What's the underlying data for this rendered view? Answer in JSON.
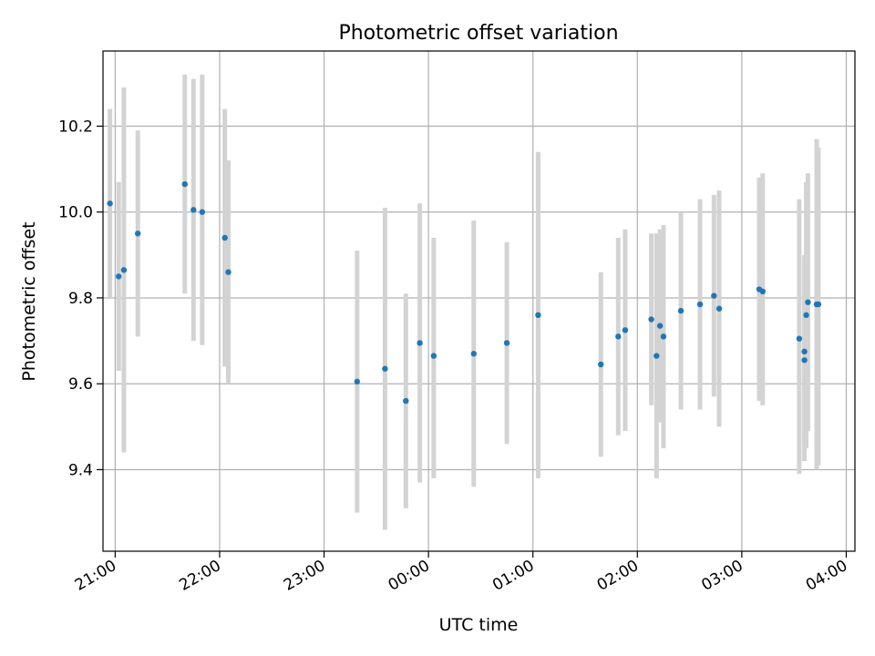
{
  "chart_data": {
    "type": "scatter",
    "title": "Photometric offset variation",
    "xlabel": "UTC time",
    "ylabel": "Photometric offset",
    "xaxis_format": "HH:MM (UTC, night spanning midnight)",
    "xlim": [
      "20:53",
      "04:05"
    ],
    "ylim": [
      9.21,
      10.375
    ],
    "x_ticks": [
      "21:00",
      "22:00",
      "23:00",
      "00:00",
      "01:00",
      "02:00",
      "03:00",
      "04:00"
    ],
    "y_ticks": [
      "9.4",
      "9.6",
      "9.8",
      "10.0",
      "10.2"
    ],
    "y_tick_values": [
      9.4,
      9.6,
      9.8,
      10.0,
      10.2
    ],
    "grid": true,
    "colors": {
      "points": "#1f77b4",
      "errorbars": "#d3d3d3",
      "grid": "#b0b0b0",
      "axes": "#000000"
    },
    "series": [
      {
        "points": [
          {
            "t": "20:57",
            "y": 10.02,
            "err_low": 9.8,
            "err_high": 10.24
          },
          {
            "t": "21:02",
            "y": 9.85,
            "err_low": 9.63,
            "err_high": 10.07
          },
          {
            "t": "21:05",
            "y": 9.865,
            "err_low": 9.44,
            "err_high": 10.29
          },
          {
            "t": "21:13",
            "y": 9.95,
            "err_low": 9.71,
            "err_high": 10.19
          },
          {
            "t": "21:40",
            "y": 10.065,
            "err_low": 9.81,
            "err_high": 10.32
          },
          {
            "t": "21:45",
            "y": 10.005,
            "err_low": 9.7,
            "err_high": 10.31
          },
          {
            "t": "21:50",
            "y": 10.0,
            "err_low": 9.69,
            "err_high": 10.32
          },
          {
            "t": "22:03",
            "y": 9.94,
            "err_low": 9.64,
            "err_high": 10.24
          },
          {
            "t": "22:05",
            "y": 9.86,
            "err_low": 9.6,
            "err_high": 10.12
          },
          {
            "t": "23:19",
            "y": 9.605,
            "err_low": 9.3,
            "err_high": 9.91
          },
          {
            "t": "23:35",
            "y": 9.635,
            "err_low": 9.26,
            "err_high": 10.01
          },
          {
            "t": "23:47",
            "y": 9.56,
            "err_low": 9.31,
            "err_high": 9.81
          },
          {
            "t": "23:55",
            "y": 9.695,
            "err_low": 9.37,
            "err_high": 10.02
          },
          {
            "t": "00:03",
            "y": 9.665,
            "err_low": 9.38,
            "err_high": 9.94
          },
          {
            "t": "00:26",
            "y": 9.67,
            "err_low": 9.36,
            "err_high": 9.98
          },
          {
            "t": "00:45",
            "y": 9.695,
            "err_low": 9.46,
            "err_high": 9.93
          },
          {
            "t": "01:03",
            "y": 9.76,
            "err_low": 9.38,
            "err_high": 10.14
          },
          {
            "t": "01:39",
            "y": 9.645,
            "err_low": 9.43,
            "err_high": 9.86
          },
          {
            "t": "01:49",
            "y": 9.71,
            "err_low": 9.48,
            "err_high": 9.94
          },
          {
            "t": "01:53",
            "y": 9.725,
            "err_low": 9.49,
            "err_high": 9.96
          },
          {
            "t": "02:08",
            "y": 9.75,
            "err_low": 9.55,
            "err_high": 9.95
          },
          {
            "t": "02:11",
            "y": 9.665,
            "err_low": 9.38,
            "err_high": 9.95
          },
          {
            "t": "02:13",
            "y": 9.735,
            "err_low": 9.51,
            "err_high": 9.96
          },
          {
            "t": "02:15",
            "y": 9.71,
            "err_low": 9.45,
            "err_high": 9.97
          },
          {
            "t": "02:25",
            "y": 9.77,
            "err_low": 9.54,
            "err_high": 10.0
          },
          {
            "t": "02:36",
            "y": 9.785,
            "err_low": 9.54,
            "err_high": 10.03
          },
          {
            "t": "02:44",
            "y": 9.805,
            "err_low": 9.57,
            "err_high": 10.04
          },
          {
            "t": "02:47",
            "y": 9.775,
            "err_low": 9.5,
            "err_high": 10.05
          },
          {
            "t": "03:10",
            "y": 9.82,
            "err_low": 9.56,
            "err_high": 10.08
          },
          {
            "t": "03:12",
            "y": 9.815,
            "err_low": 9.55,
            "err_high": 10.09
          },
          {
            "t": "03:33",
            "y": 9.705,
            "err_low": 9.39,
            "err_high": 10.03
          },
          {
            "t": "03:36",
            "y": 9.675,
            "err_low": 9.46,
            "err_high": 9.88
          },
          {
            "t": "03:36",
            "y": 9.655,
            "err_low": 9.42,
            "err_high": 9.9
          },
          {
            "t": "03:37",
            "y": 9.76,
            "err_low": 9.45,
            "err_high": 10.07
          },
          {
            "t": "03:38",
            "y": 9.79,
            "err_low": 9.49,
            "err_high": 10.09
          },
          {
            "t": "03:43",
            "y": 9.785,
            "err_low": 9.4,
            "err_high": 10.17
          },
          {
            "t": "03:44",
            "y": 9.785,
            "err_low": 9.41,
            "err_high": 10.15
          }
        ]
      }
    ]
  }
}
